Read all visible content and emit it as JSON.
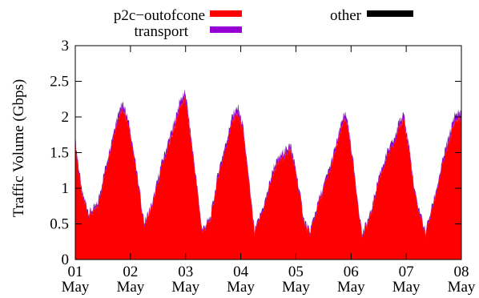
{
  "chart_data": {
    "type": "area",
    "stacked": true,
    "title": "",
    "xlabel": "",
    "ylabel": "Traffic Volume (Gbps)",
    "ylim": [
      0,
      3
    ],
    "yticks": [
      "0",
      "0.5",
      "1",
      "1.5",
      "2",
      "2.5",
      "3"
    ],
    "xlim": [
      0,
      7
    ],
    "xticks": [
      {
        "day": "01",
        "month": "May"
      },
      {
        "day": "02",
        "month": "May"
      },
      {
        "day": "03",
        "month": "May"
      },
      {
        "day": "04",
        "month": "May"
      },
      {
        "day": "05",
        "month": "May"
      },
      {
        "day": "06",
        "month": "May"
      },
      {
        "day": "07",
        "month": "May"
      },
      {
        "day": "08",
        "month": "May"
      }
    ],
    "x_unit": "days since 01 May",
    "legend_position": "top, outside plot",
    "series": [
      {
        "name": "p2c−outofcone",
        "color": "#ff0000",
        "x": [
          0,
          0.12,
          0.25,
          0.4,
          0.55,
          0.7,
          0.8,
          0.88,
          1.0,
          1.25,
          1.4,
          1.55,
          1.7,
          1.8,
          1.9,
          2.0,
          2.15,
          2.3,
          2.45,
          2.6,
          2.75,
          2.85,
          2.95,
          3.05,
          3.25,
          3.45,
          3.6,
          3.75,
          3.85,
          3.9,
          4.0,
          4.15,
          4.25,
          4.4,
          4.6,
          4.75,
          4.85,
          4.92,
          5.0,
          5.2,
          5.35,
          5.5,
          5.65,
          5.8,
          5.88,
          5.95,
          6.05,
          6.15,
          6.35,
          6.55,
          6.7,
          6.8,
          6.88,
          7.0
        ],
        "y": [
          1.62,
          0.9,
          0.62,
          0.72,
          1.25,
          1.75,
          2.05,
          2.1,
          1.75,
          0.48,
          0.75,
          1.25,
          1.62,
          1.85,
          2.15,
          2.25,
          1.35,
          0.38,
          0.55,
          1.2,
          1.62,
          1.95,
          2.05,
          1.75,
          0.35,
          0.8,
          1.25,
          1.42,
          1.5,
          1.55,
          1.2,
          0.52,
          0.35,
          0.75,
          1.2,
          1.6,
          1.92,
          1.95,
          1.55,
          0.32,
          0.6,
          1.1,
          1.42,
          1.65,
          1.9,
          1.95,
          1.55,
          0.9,
          0.35,
          0.95,
          1.45,
          1.72,
          1.95,
          1.98
        ]
      },
      {
        "name": "transport",
        "color": "#9400d3",
        "values": [
          0.05,
          0.04,
          0.03,
          0.04,
          0.05,
          0.06,
          0.07,
          0.07,
          0.06,
          0.03,
          0.04,
          0.05,
          0.06,
          0.07,
          0.08,
          0.08,
          0.05,
          0.03,
          0.03,
          0.05,
          0.06,
          0.07,
          0.08,
          0.06,
          0.03,
          0.04,
          0.05,
          0.06,
          0.06,
          0.06,
          0.05,
          0.03,
          0.03,
          0.04,
          0.05,
          0.06,
          0.07,
          0.07,
          0.05,
          0.03,
          0.03,
          0.05,
          0.06,
          0.06,
          0.07,
          0.07,
          0.06,
          0.04,
          0.03,
          0.04,
          0.06,
          0.07,
          0.08,
          0.08
        ]
      },
      {
        "name": "other",
        "color": "#000000",
        "values": [
          0.01,
          0.01,
          0.01,
          0.01,
          0.01,
          0.01,
          0.01,
          0.01,
          0.01,
          0.01,
          0.01,
          0.01,
          0.01,
          0.01,
          0.01,
          0.01,
          0.01,
          0.01,
          0.01,
          0.01,
          0.01,
          0.01,
          0.01,
          0.01,
          0.01,
          0.01,
          0.01,
          0.01,
          0.01,
          0.01,
          0.01,
          0.01,
          0.01,
          0.01,
          0.01,
          0.01,
          0.01,
          0.01,
          0.01,
          0.01,
          0.01,
          0.01,
          0.01,
          0.01,
          0.01,
          0.01,
          0.01,
          0.01,
          0.01,
          0.01,
          0.01,
          0.01,
          0.01,
          0.01
        ]
      }
    ]
  }
}
